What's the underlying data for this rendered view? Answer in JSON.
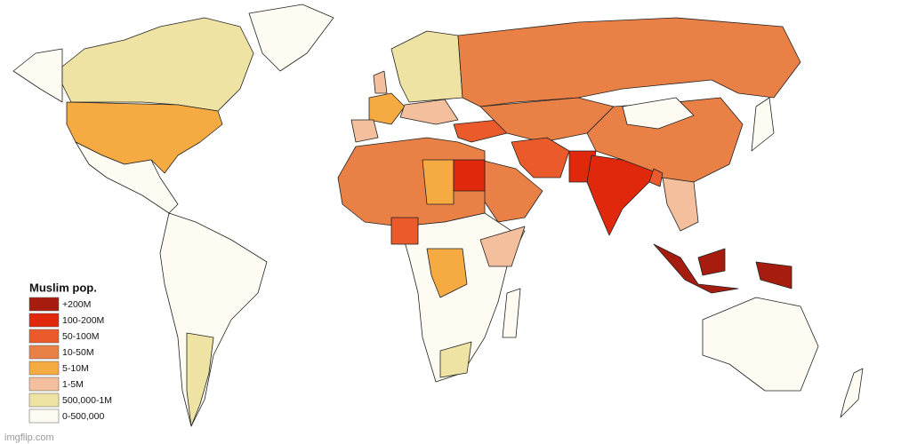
{
  "legend": {
    "title": "Muslim pop.",
    "items": [
      {
        "label": "+200M",
        "color": "#a61c0e"
      },
      {
        "label": "100-200M",
        "color": "#e0290c"
      },
      {
        "label": "50-100M",
        "color": "#ea5a2a"
      },
      {
        "label": "10-50M",
        "color": "#e98046"
      },
      {
        "label": "5-10M",
        "color": "#f6ab42"
      },
      {
        "label": "1-5M",
        "color": "#f3bf9c"
      },
      {
        "label": "500,000-1M",
        "color": "#efe3a3"
      },
      {
        "label": "0-500,000",
        "color": "#fdfbf2"
      }
    ]
  },
  "watermark": "imgflip.com"
}
